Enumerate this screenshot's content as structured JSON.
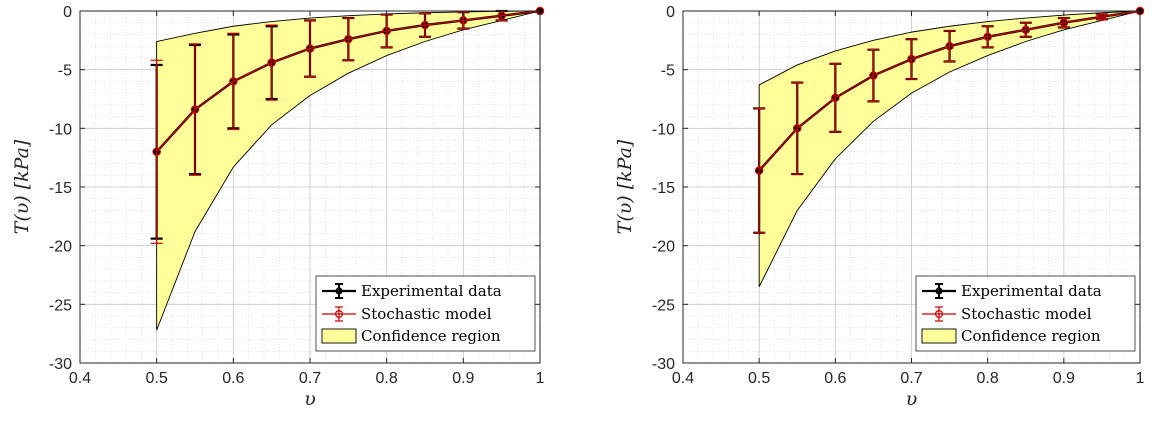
{
  "chart_data": [
    {
      "type": "line",
      "title": "",
      "xlabel": "υ",
      "ylabel": "T(υ) [kPa]",
      "xlim": [
        0.4,
        1
      ],
      "ylim": [
        -30,
        0
      ],
      "xticks": [
        "0.4",
        "0.5",
        "0.6",
        "0.7",
        "0.8",
        "0.9",
        "1"
      ],
      "yticks": [
        "0",
        "-5",
        "-10",
        "-15",
        "-20",
        "-25",
        "-30"
      ],
      "grid": true,
      "minor_grid": true,
      "legend_position": "bottom-right",
      "series": [
        {
          "name": "Experimental data",
          "color": "#000000",
          "marker": "filled-circle",
          "x": [
            0.5,
            0.55,
            0.6,
            0.65,
            0.7,
            0.75,
            0.8,
            0.85,
            0.9,
            0.95,
            1
          ],
          "y": [
            -12.0,
            -8.4,
            -6.0,
            -4.4,
            -3.2,
            -2.4,
            -1.7,
            -1.2,
            -0.8,
            -0.4,
            0
          ],
          "err": [
            7.4,
            5.5,
            4.0,
            3.1,
            2.4,
            1.8,
            1.4,
            1.0,
            0.7,
            0.4,
            0
          ]
        },
        {
          "name": "Stochastic model",
          "color": "#d00000",
          "marker": "open-circle",
          "x": [
            0.5,
            0.55,
            0.6,
            0.65,
            0.7,
            0.75,
            0.8,
            0.85,
            0.9,
            0.95,
            1
          ],
          "y": [
            -12.0,
            -8.4,
            -6.0,
            -4.4,
            -3.2,
            -2.4,
            -1.7,
            -1.2,
            -0.8,
            -0.4,
            0
          ],
          "err": [
            7.8,
            5.6,
            4.1,
            3.2,
            2.4,
            1.8,
            1.4,
            1.0,
            0.7,
            0.4,
            0
          ]
        },
        {
          "name": "Confidence region",
          "color": "#ffff99",
          "x": [
            0.5,
            0.55,
            0.6,
            0.65,
            0.7,
            0.75,
            0.8,
            0.85,
            0.9,
            0.95,
            1
          ],
          "upper": [
            -2.6,
            -1.9,
            -1.3,
            -0.9,
            -0.6,
            -0.4,
            -0.25,
            -0.15,
            -0.08,
            -0.03,
            0
          ],
          "lower": [
            -27.2,
            -18.8,
            -13.3,
            -9.7,
            -7.2,
            -5.3,
            -3.8,
            -2.6,
            -1.6,
            -0.8,
            0
          ]
        }
      ]
    },
    {
      "type": "line",
      "title": "",
      "xlabel": "υ",
      "ylabel": "T(υ) [kPa]",
      "xlim": [
        0.4,
        1
      ],
      "ylim": [
        -30,
        0
      ],
      "xticks": [
        "0.4",
        "0.5",
        "0.6",
        "0.7",
        "0.8",
        "0.9",
        "1"
      ],
      "yticks": [
        "0",
        "-5",
        "-10",
        "-15",
        "-20",
        "-25",
        "-30"
      ],
      "grid": true,
      "minor_grid": true,
      "legend_position": "bottom-right",
      "series": [
        {
          "name": "Experimental data",
          "color": "#000000",
          "marker": "filled-circle",
          "x": [
            0.5,
            0.55,
            0.6,
            0.65,
            0.7,
            0.75,
            0.8,
            0.85,
            0.9,
            0.95,
            1
          ],
          "y": [
            -13.6,
            -10.0,
            -7.4,
            -5.5,
            -4.1,
            -3.0,
            -2.2,
            -1.6,
            -1.0,
            -0.5,
            0
          ],
          "err": [
            5.3,
            3.9,
            2.9,
            2.2,
            1.7,
            1.3,
            0.9,
            0.6,
            0.4,
            0.2,
            0
          ]
        },
        {
          "name": "Stochastic model",
          "color": "#d00000",
          "marker": "open-circle",
          "x": [
            0.5,
            0.55,
            0.6,
            0.65,
            0.7,
            0.75,
            0.8,
            0.85,
            0.9,
            0.95,
            1
          ],
          "y": [
            -13.6,
            -10.0,
            -7.4,
            -5.5,
            -4.1,
            -3.0,
            -2.2,
            -1.6,
            -1.0,
            -0.5,
            0
          ],
          "err": [
            5.3,
            3.9,
            2.9,
            2.2,
            1.7,
            1.3,
            0.9,
            0.6,
            0.4,
            0.2,
            0
          ]
        },
        {
          "name": "Confidence region",
          "color": "#ffff99",
          "x": [
            0.5,
            0.55,
            0.6,
            0.65,
            0.7,
            0.75,
            0.8,
            0.85,
            0.9,
            0.95,
            1
          ],
          "upper": [
            -6.3,
            -4.6,
            -3.4,
            -2.5,
            -1.8,
            -1.3,
            -0.9,
            -0.6,
            -0.35,
            -0.15,
            0
          ],
          "lower": [
            -23.5,
            -17.0,
            -12.6,
            -9.4,
            -7.0,
            -5.2,
            -3.8,
            -2.6,
            -1.6,
            -0.8,
            0
          ]
        }
      ]
    }
  ]
}
